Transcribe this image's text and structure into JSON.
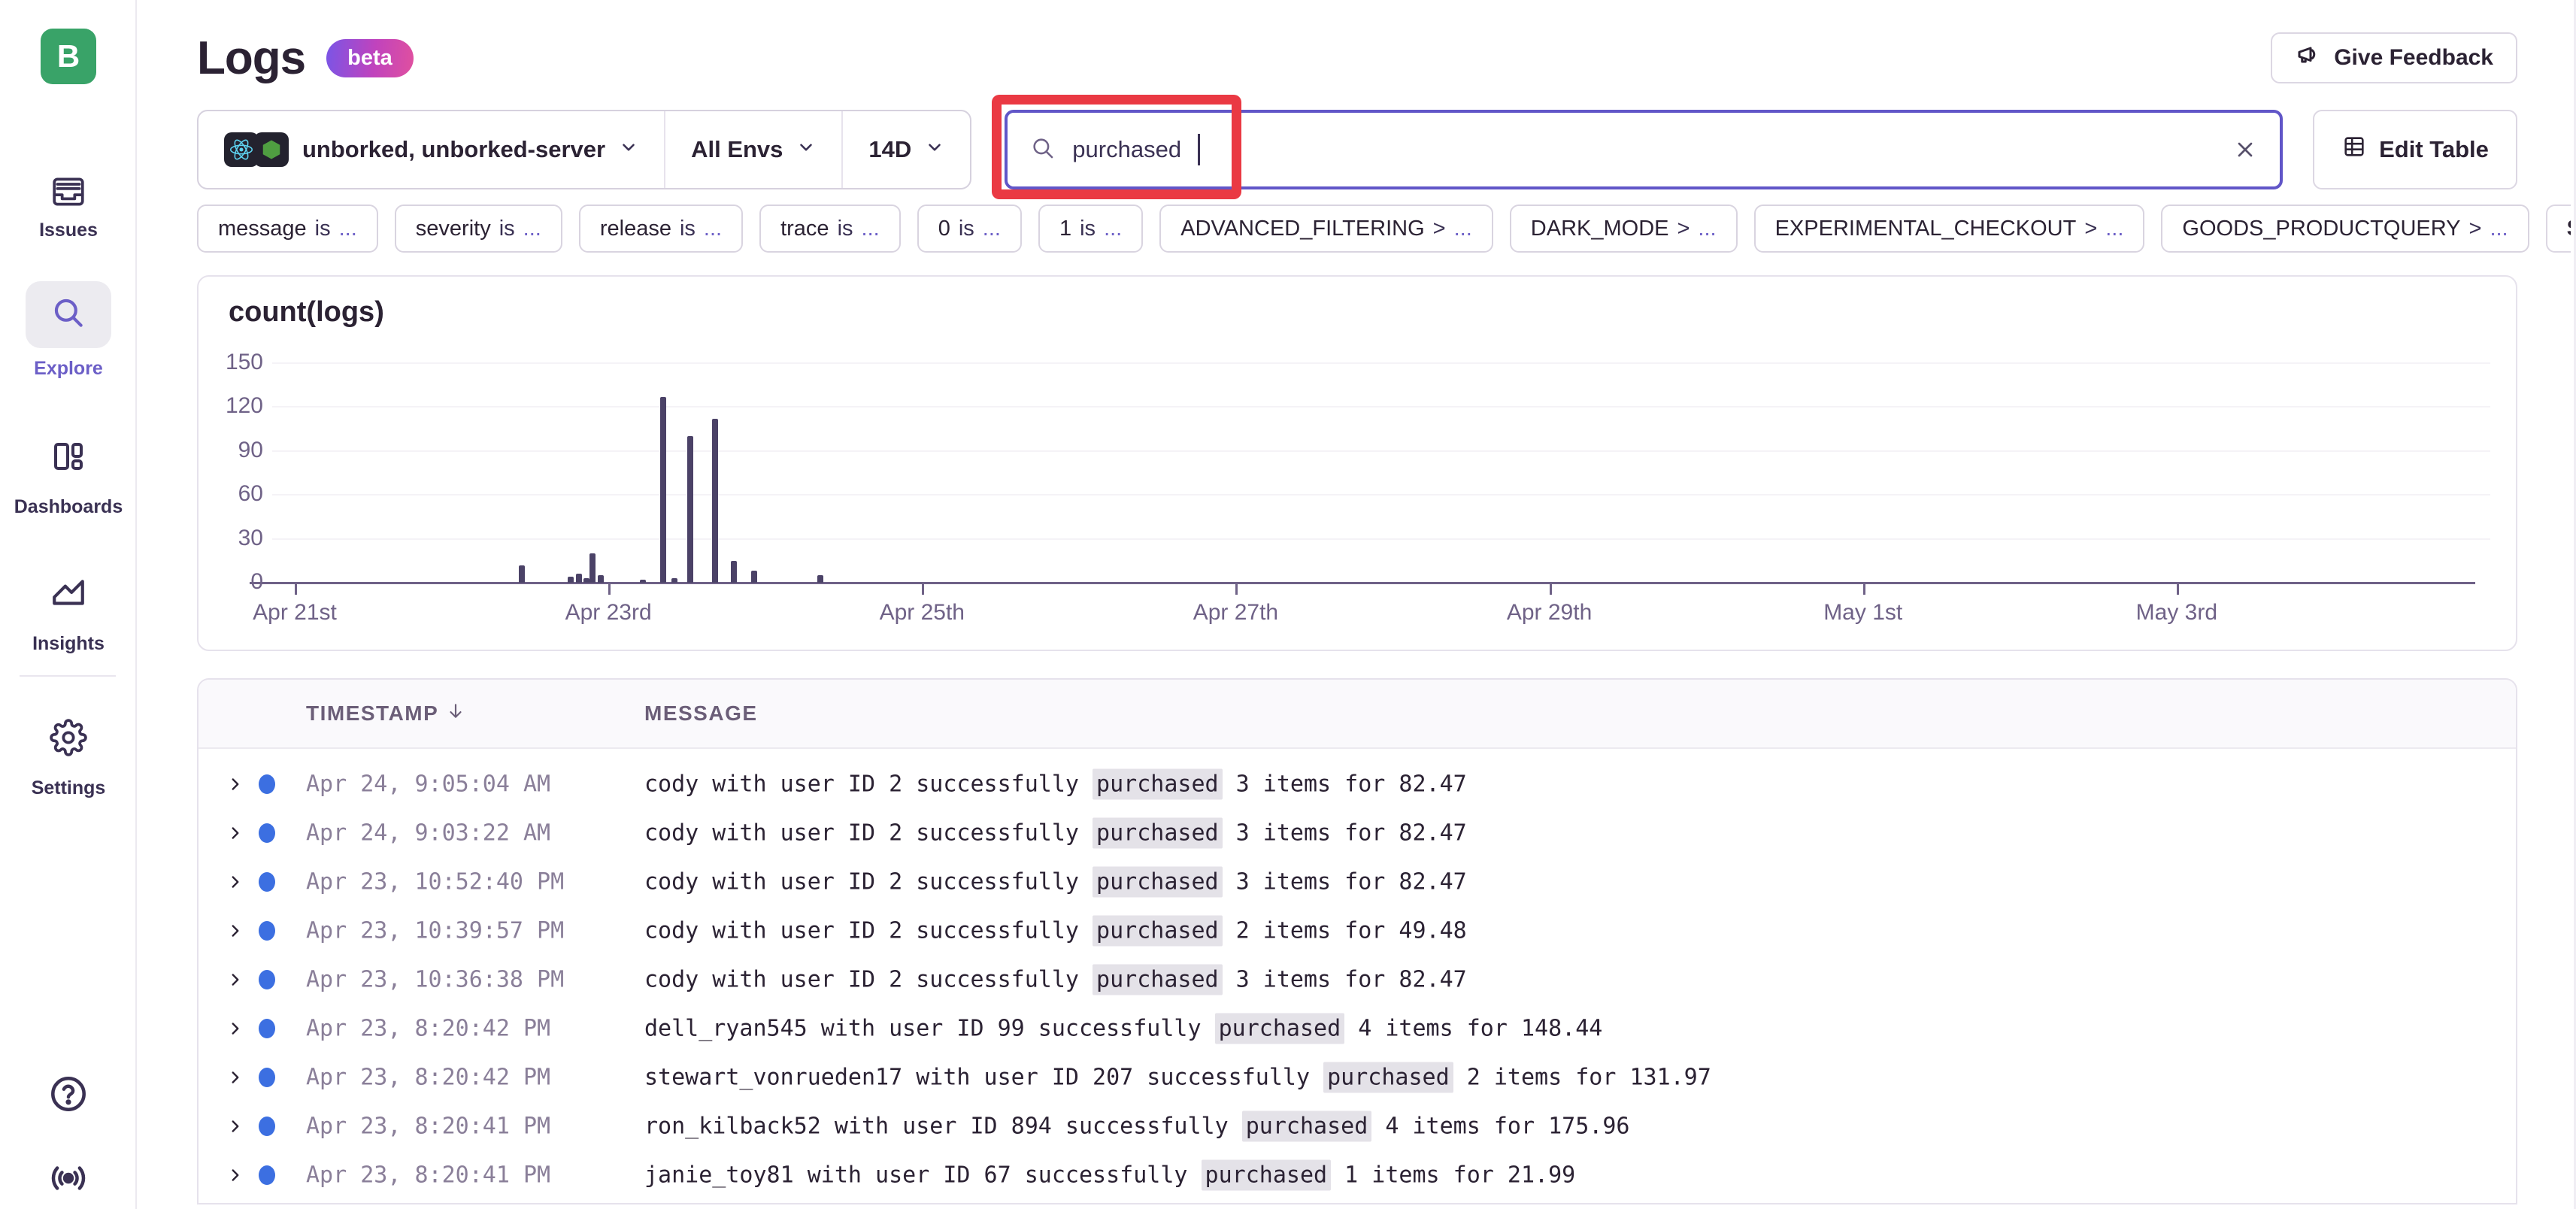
{
  "page": {
    "logo_letter": "B",
    "title": "Logs",
    "beta": "beta"
  },
  "header": {
    "give_feedback": "Give Feedback"
  },
  "sidebar": {
    "items": [
      {
        "label": "Issues",
        "icon": "issues-icon",
        "active": false
      },
      {
        "label": "Explore",
        "icon": "search-icon",
        "active": true
      },
      {
        "label": "Dashboards",
        "icon": "dashboards-icon",
        "active": false
      },
      {
        "label": "Insights",
        "icon": "insights-icon",
        "active": false
      },
      {
        "label": "Settings",
        "icon": "settings-icon",
        "active": false
      }
    ],
    "footer_icons": [
      "help-icon",
      "broadcast-icon"
    ]
  },
  "filter_bar": {
    "project": "unborked, unborked-server",
    "project_icons": [
      "react-icon",
      "node-icon"
    ],
    "environment": "All Envs",
    "date_range": "14D",
    "search_value": "purchased",
    "edit_table": "Edit Table"
  },
  "chips": [
    {
      "name": "message",
      "op": "is",
      "value": "..."
    },
    {
      "name": "severity",
      "op": "is",
      "value": "..."
    },
    {
      "name": "release",
      "op": "is",
      "value": "..."
    },
    {
      "name": "trace",
      "op": "is",
      "value": "..."
    },
    {
      "name": "0",
      "op": "is",
      "value": "..."
    },
    {
      "name": "1",
      "op": "is",
      "value": "..."
    },
    {
      "name": "ADVANCED_FILTERING",
      "op": ">",
      "value": "..."
    },
    {
      "name": "DARK_MODE",
      "op": ">",
      "value": "..."
    },
    {
      "name": "EXPERIMENTAL_CHECKOUT",
      "op": ">",
      "value": "..."
    },
    {
      "name": "GOODS_PRODUCTQUERY",
      "op": ">",
      "value": "..."
    }
  ],
  "see_full_list": "See full list",
  "chart_data": {
    "type": "bar",
    "title": "count(logs)",
    "ylabel": "count",
    "ylim": [
      0,
      150
    ],
    "yticks": [
      0,
      30,
      60,
      90,
      120,
      150
    ],
    "grid": true,
    "x_axis": {
      "span_days": 14,
      "tick_labels": [
        "Apr 21st",
        "Apr 23rd",
        "Apr 25th",
        "Apr 27th",
        "Apr 29th",
        "May 1st",
        "May 3rd"
      ],
      "tick_day_offsets": [
        0,
        2,
        4,
        6,
        8,
        10,
        12
      ]
    },
    "bars": [
      {
        "day_offset": 1.45,
        "value": 12
      },
      {
        "day_offset": 1.76,
        "value": 4
      },
      {
        "day_offset": 1.81,
        "value": 6
      },
      {
        "day_offset": 1.86,
        "value": 3
      },
      {
        "day_offset": 1.9,
        "value": 20
      },
      {
        "day_offset": 1.95,
        "value": 5
      },
      {
        "day_offset": 2.22,
        "value": 2
      },
      {
        "day_offset": 2.35,
        "value": 127
      },
      {
        "day_offset": 2.42,
        "value": 3
      },
      {
        "day_offset": 2.52,
        "value": 100
      },
      {
        "day_offset": 2.68,
        "value": 112
      },
      {
        "day_offset": 2.8,
        "value": 15
      },
      {
        "day_offset": 2.93,
        "value": 8
      },
      {
        "day_offset": 3.35,
        "value": 5
      }
    ]
  },
  "table": {
    "columns": [
      "TIMESTAMP",
      "MESSAGE"
    ],
    "sort": "timestamp-descending",
    "rows": [
      {
        "timestamp": "Apr 24, 9:05:04 AM",
        "message_prefix": "cody with user ID 2 successfully ",
        "highlight": "purchased",
        "message_suffix": " 3 items for 82.47"
      },
      {
        "timestamp": "Apr 24, 9:03:22 AM",
        "message_prefix": "cody with user ID 2 successfully ",
        "highlight": "purchased",
        "message_suffix": " 3 items for 82.47"
      },
      {
        "timestamp": "Apr 23, 10:52:40 PM",
        "message_prefix": "cody with user ID 2 successfully ",
        "highlight": "purchased",
        "message_suffix": " 3 items for 82.47"
      },
      {
        "timestamp": "Apr 23, 10:39:57 PM",
        "message_prefix": "cody with user ID 2 successfully ",
        "highlight": "purchased",
        "message_suffix": " 2 items for 49.48"
      },
      {
        "timestamp": "Apr 23, 10:36:38 PM",
        "message_prefix": "cody with user ID 2 successfully ",
        "highlight": "purchased",
        "message_suffix": " 3 items for 82.47"
      },
      {
        "timestamp": "Apr 23, 8:20:42 PM",
        "message_prefix": "dell_ryan545 with user ID 99 successfully ",
        "highlight": "purchased",
        "message_suffix": " 4 items for 148.44"
      },
      {
        "timestamp": "Apr 23, 8:20:42 PM",
        "message_prefix": "stewart_vonrueden17 with user ID 207 successfully ",
        "highlight": "purchased",
        "message_suffix": " 2 items for 131.97"
      },
      {
        "timestamp": "Apr 23, 8:20:41 PM",
        "message_prefix": "ron_kilback52 with user ID 894 successfully ",
        "highlight": "purchased",
        "message_suffix": " 4 items for 175.96"
      },
      {
        "timestamp": "Apr 23, 8:20:41 PM",
        "message_prefix": "janie_toy81 with user ID 67 successfully ",
        "highlight": "purchased",
        "message_suffix": " 1 items for 21.99"
      }
    ]
  },
  "colors": {
    "accent": "#6C5FC7",
    "annotation_red": "#EA3943",
    "log_level_blue": "#3C6FE1",
    "bar": "#4B4267",
    "logo_green": "#39A368"
  }
}
